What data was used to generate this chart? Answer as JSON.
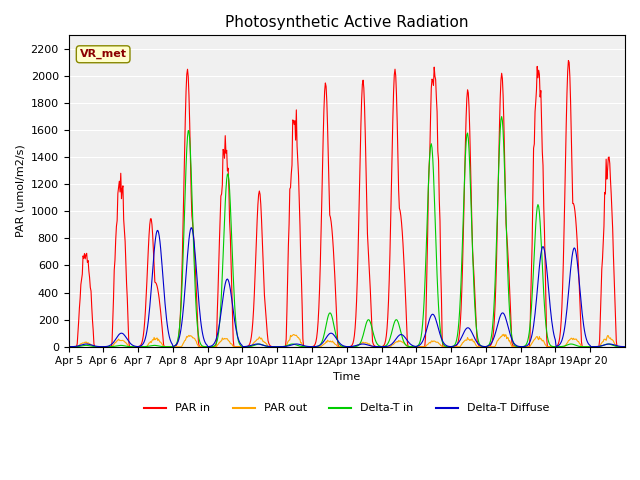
{
  "title": "Photosynthetic Active Radiation",
  "ylabel": "PAR (umol/m2/s)",
  "xlabel": "Time",
  "annotation": "VR_met",
  "ylim": [
    0,
    2300
  ],
  "background_color": "#f0f0f0",
  "line_colors": {
    "PAR in": "#ff0000",
    "PAR out": "#ffa500",
    "Delta-T in": "#00cc00",
    "Delta-T Diffuse": "#0000cc"
  },
  "legend_labels": [
    "PAR in",
    "PAR out",
    "Delta-T in",
    "Delta-T Diffuse"
  ],
  "xtick_labels": [
    "Apr 5",
    "Apr 6",
    "Apr 7",
    "Apr 8",
    "Apr 9",
    "Apr 10",
    "Apr 11",
    "Apr 12",
    "Apr 13",
    "Apr 14",
    "Apr 15",
    "Apr 16",
    "Apr 17",
    "Apr 18",
    "Apr 19",
    "Apr 20"
  ],
  "ytick_values": [
    0,
    200,
    400,
    600,
    800,
    1000,
    1200,
    1400,
    1600,
    1800,
    2000,
    2200
  ],
  "par_in_peaks": [
    700,
    1200,
    950,
    2050,
    1450,
    1150,
    1650,
    1950,
    1970,
    2050,
    2000,
    1900,
    2020,
    2020,
    2120,
    1300
  ],
  "par_out_peaks": [
    30,
    50,
    60,
    80,
    60,
    60,
    90,
    40,
    30,
    40,
    40,
    60,
    90,
    70,
    60,
    70
  ],
  "delta_t_in_peaks": [
    10,
    10,
    10,
    1600,
    1280,
    20,
    20,
    250,
    200,
    200,
    1500,
    1580,
    1700,
    1050,
    20,
    20
  ],
  "delta_t_d_peaks": [
    20,
    100,
    860,
    880,
    500,
    20,
    20,
    100,
    20,
    90,
    240,
    140,
    250,
    740,
    730,
    20
  ],
  "spiky_days": [
    2,
    3,
    5,
    7,
    8,
    9,
    11,
    12,
    14
  ]
}
